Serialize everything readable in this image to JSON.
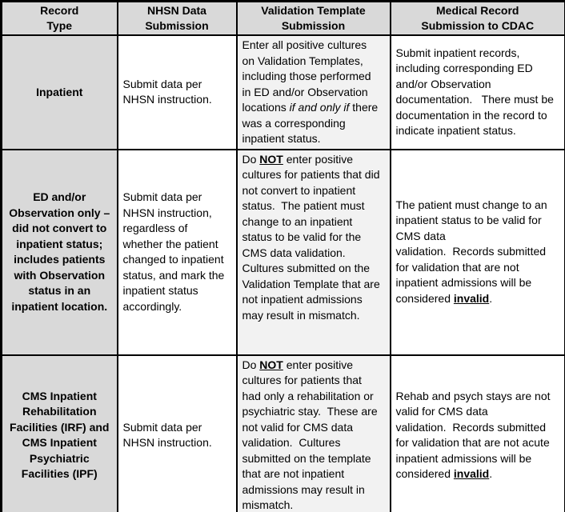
{
  "colors": {
    "header_background": "#d9d9d9",
    "record_type_column_background": "#d9d9d9",
    "validation_column_background": "#f2f2f2",
    "other_cells_background": "#ffffff",
    "border": "#000000",
    "text": "#000000"
  },
  "table": {
    "headers": [
      "Record\nType",
      "NHSN Data\nSubmission",
      "Validation Template\nSubmission",
      "Medical Record\nSubmission to CDAC"
    ],
    "rows": [
      {
        "record_type": "Inpatient",
        "nhsn": "Submit data per NHSN instruction.",
        "validation_template": [
          {
            "t": "Enter all positive cultures on Validation Templates, including those performed in ED and/or Observation locations "
          },
          {
            "t": "if and only if",
            "s": "italic"
          },
          {
            "t": " there was a corresponding inpatient status."
          }
        ],
        "medical_record": [
          {
            "t": "Submit inpatient records, including corresponding ED and/or Observation documentation.   There must be documentation in the record to indicate inpatient status."
          }
        ]
      },
      {
        "record_type": "ED and/or Observation only – did not convert to inpatient status; includes patients with Observation status in an inpatient location.",
        "nhsn": "Submit data per NHSN instruction, regardless of whether the patient changed to inpatient status, and mark the inpatient status accordingly.",
        "validation_template": [
          {
            "t": "Do "
          },
          {
            "t": "NOT",
            "s": "bold-underline"
          },
          {
            "t": " enter positive cultures for patients that did not convert to inpatient status.  The patient must change to an inpatient status to be valid for the CMS data validation.  Cultures submitted on the Validation Template that are not inpatient admissions may result in mismatch."
          }
        ],
        "medical_record": [
          {
            "t": "The patient must change to an inpatient status to be valid for CMS data\nvalidation.  Records submitted for validation that are not inpatient admissions will be considered "
          },
          {
            "t": "invalid",
            "s": "bold-underline"
          },
          {
            "t": "."
          }
        ]
      },
      {
        "record_type": "CMS Inpatient Rehabilitation Facilities (IRF) and CMS Inpatient Psychiatric Facilities (IPF)",
        "nhsn": "Submit data per NHSN instruction.",
        "validation_template": [
          {
            "t": "Do "
          },
          {
            "t": "NOT",
            "s": "bold-underline"
          },
          {
            "t": " enter positive cultures for patients that had only a rehabilitation or psychiatric stay.  These are not valid for CMS data validation.  Cultures submitted on the template that are not inpatient admissions may result in mismatch."
          }
        ],
        "medical_record": [
          {
            "t": "Rehab and psych stays are not valid for CMS data\nvalidation.  Records submitted for validation that are not acute inpatient admissions will be considered "
          },
          {
            "t": "invalid",
            "s": "bold-underline"
          },
          {
            "t": "."
          }
        ]
      }
    ]
  }
}
